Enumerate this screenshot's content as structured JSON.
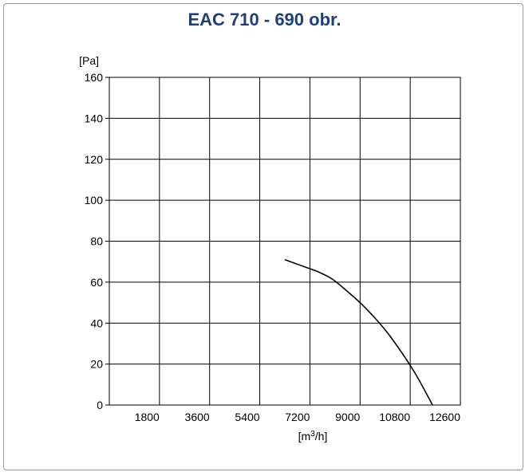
{
  "chart_data": {
    "type": "line",
    "title": "EAC 710 - 690 obr.",
    "ylabel": "[Pa]",
    "xlabel_base": "[m",
    "xlabel_sup": "3",
    "xlabel_tail": "/h]",
    "xlim": [
      0,
      12600
    ],
    "ylim": [
      0,
      160
    ],
    "x_ticks": [
      1800,
      3600,
      5400,
      7200,
      9000,
      10800,
      12600
    ],
    "y_ticks": [
      0,
      20,
      40,
      60,
      80,
      100,
      120,
      140,
      160
    ],
    "grid": true,
    "series": [
      {
        "color": "#000000",
        "x": [
          6300,
          6900,
          7500,
          8000,
          8500,
          9000,
          9500,
          10000,
          10500,
          11000,
          11600
        ],
        "y": [
          71,
          68,
          65,
          61.5,
          56,
          50,
          43,
          35,
          25.5,
          15,
          0
        ]
      }
    ]
  }
}
